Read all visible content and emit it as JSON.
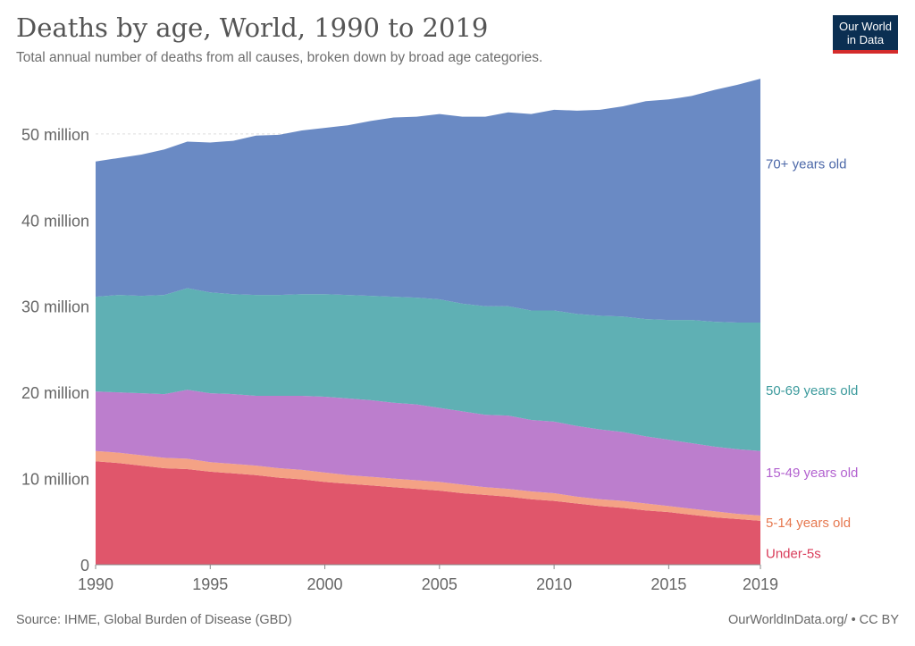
{
  "title": "Deaths by age, World, 1990 to 2019",
  "subtitle": "Total annual number of deaths from all causes, broken down by broad age categories.",
  "logo": {
    "line1": "Our World",
    "line2": "in Data"
  },
  "footer": {
    "source": "Source: IHME, Global Burden of Disease (GBD)",
    "credit": "OurWorldInData.org/ • CC BY"
  },
  "colors": {
    "under5": "#e0566b",
    "age5_14": "#f4a285",
    "age15_49": "#bc7ecd",
    "age50_69": "#5fb0b4",
    "age70": "#6a8ac4",
    "label_under5": "#d93c5a",
    "label_5_14": "#e6784f",
    "label_15_49": "#b261cf",
    "label_50_69": "#3b9a9c",
    "label_70": "#4c68a8"
  },
  "chart_data": {
    "type": "area",
    "stacked": true,
    "x": [
      1990,
      1991,
      1992,
      1993,
      1994,
      1995,
      1996,
      1997,
      1998,
      1999,
      2000,
      2001,
      2002,
      2003,
      2004,
      2005,
      2006,
      2007,
      2008,
      2009,
      2010,
      2011,
      2012,
      2013,
      2014,
      2015,
      2016,
      2017,
      2018,
      2019
    ],
    "series": [
      {
        "name": "Under-5s",
        "key": "under5",
        "values": [
          12.0,
          11.8,
          11.5,
          11.2,
          11.1,
          10.8,
          10.6,
          10.4,
          10.1,
          9.9,
          9.6,
          9.4,
          9.2,
          9.0,
          8.8,
          8.6,
          8.3,
          8.1,
          7.9,
          7.6,
          7.4,
          7.1,
          6.8,
          6.6,
          6.3,
          6.1,
          5.8,
          5.5,
          5.3,
          5.1
        ]
      },
      {
        "name": "5-14 years old",
        "key": "age5_14",
        "values": [
          1.2,
          1.2,
          1.2,
          1.2,
          1.2,
          1.1,
          1.1,
          1.1,
          1.1,
          1.1,
          1.1,
          1.0,
          1.0,
          1.0,
          1.0,
          1.0,
          1.0,
          0.9,
          0.9,
          0.9,
          0.9,
          0.8,
          0.8,
          0.8,
          0.8,
          0.7,
          0.7,
          0.7,
          0.6,
          0.6
        ]
      },
      {
        "name": "15-49 years old",
        "key": "age15_49",
        "values": [
          6.9,
          7.0,
          7.2,
          7.4,
          8.0,
          8.0,
          8.1,
          8.1,
          8.4,
          8.6,
          8.8,
          8.9,
          8.9,
          8.8,
          8.8,
          8.6,
          8.5,
          8.4,
          8.5,
          8.3,
          8.3,
          8.2,
          8.1,
          8.0,
          7.8,
          7.7,
          7.6,
          7.5,
          7.5,
          7.5
        ]
      },
      {
        "name": "50-69 years old",
        "key": "age50_69",
        "values": [
          11.0,
          11.3,
          11.3,
          11.5,
          11.8,
          11.7,
          11.6,
          11.7,
          11.7,
          11.8,
          11.9,
          12.0,
          12.1,
          12.3,
          12.4,
          12.6,
          12.5,
          12.6,
          12.7,
          12.7,
          12.9,
          13.0,
          13.2,
          13.4,
          13.6,
          13.9,
          14.3,
          14.5,
          14.7,
          14.9
        ]
      },
      {
        "name": "70+ years old",
        "key": "age70",
        "values": [
          15.7,
          15.9,
          16.4,
          16.9,
          17.0,
          17.4,
          17.8,
          18.5,
          18.6,
          19.0,
          19.3,
          19.7,
          20.3,
          20.8,
          21.0,
          21.5,
          21.7,
          22.0,
          22.5,
          22.8,
          23.3,
          23.6,
          23.9,
          24.4,
          25.3,
          25.6,
          26.0,
          26.9,
          27.6,
          28.3
        ]
      }
    ],
    "y_ticks": [
      {
        "value": 0,
        "label": "0"
      },
      {
        "value": 10,
        "label": "10 million"
      },
      {
        "value": 20,
        "label": "20 million"
      },
      {
        "value": 30,
        "label": "30 million"
      },
      {
        "value": 40,
        "label": "40 million"
      },
      {
        "value": 50,
        "label": "50 million"
      }
    ],
    "x_ticks": [
      {
        "value": 1990,
        "label": "1990"
      },
      {
        "value": 1995,
        "label": "1995"
      },
      {
        "value": 2000,
        "label": "2000"
      },
      {
        "value": 2005,
        "label": "2005"
      },
      {
        "value": 2010,
        "label": "2010"
      },
      {
        "value": 2015,
        "label": "2015"
      },
      {
        "value": 2019,
        "label": "2019"
      }
    ],
    "ylim": [
      0,
      56
    ],
    "xlim": [
      1990,
      2019
    ],
    "grid": "horizontal-dashed",
    "legend": "right-inline"
  }
}
